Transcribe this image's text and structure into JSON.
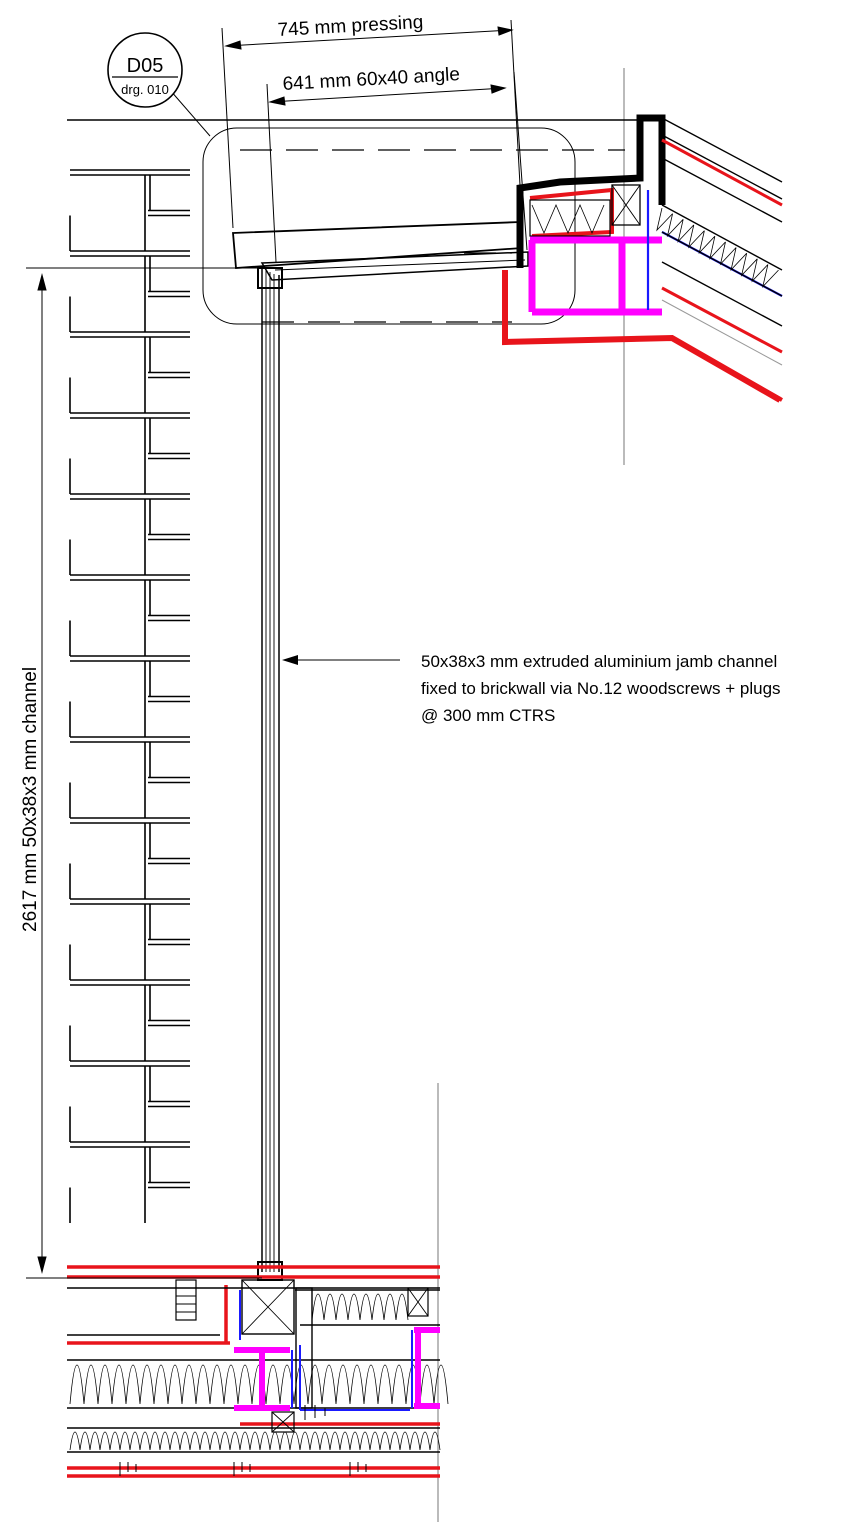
{
  "detail_marker": {
    "ref": "D05",
    "drawing": "drg. 010"
  },
  "dimensions": {
    "pressing": "745 mm pressing",
    "angle": "641 mm 60x40 angle",
    "channel_height": "2617 mm 50x38x3 mm channel"
  },
  "note": {
    "line1": "50x38x3 mm extruded aluminium jamb channel",
    "line2": "fixed to brickwall via No.12 woodscrews + plugs",
    "line3": "@ 300 mm CTRS"
  },
  "colors": {
    "line": "#000000",
    "membrane": "#e8141b",
    "steel": "#ff00ff",
    "vapour": "#1a1aff",
    "guide": "#777777"
  }
}
